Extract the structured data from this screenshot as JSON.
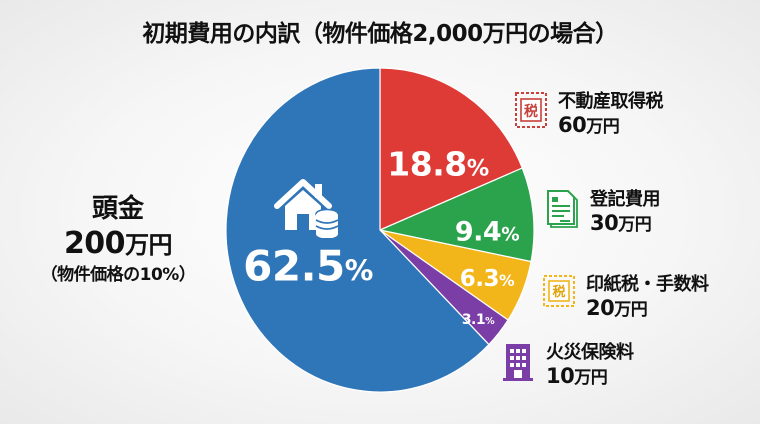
{
  "title": "初期費用の内訳（物件価格2,000万円の場合）",
  "colors": {
    "down_payment": "#2f76b8",
    "acquisition_tax": "#de3a36",
    "registration": "#2ba24c",
    "stamp_fees": "#f2b61b",
    "insurance": "#7b3ea6"
  },
  "slices": [
    {
      "key": "acquisition_tax",
      "pct_num": "18.8",
      "pct_sym": "%"
    },
    {
      "key": "registration",
      "pct_num": "9.4",
      "pct_sym": "%"
    },
    {
      "key": "stamp_fees",
      "pct_num": "6.3",
      "pct_sym": "%"
    },
    {
      "key": "insurance",
      "pct_num": "3.1",
      "pct_sym": "%"
    },
    {
      "key": "down_payment",
      "pct_num": "62.5",
      "pct_sym": "%"
    }
  ],
  "down_payment": {
    "name": "頭金",
    "amount_num": "200",
    "amount_unit": "万円",
    "note": "（物件価格の10%）",
    "icon": "house-coins-icon"
  },
  "legend": [
    {
      "name": "不動産取得税",
      "amount_num": "60",
      "amount_unit": "万円",
      "icon": "tax-stamp-icon",
      "icon_text": "税"
    },
    {
      "name": "登記費用",
      "amount_num": "30",
      "amount_unit": "万円",
      "icon": "document-icon"
    },
    {
      "name": "印紙税・手数料",
      "amount_num": "20",
      "amount_unit": "万円",
      "icon": "tax-stamp-icon",
      "icon_text": "税"
    },
    {
      "name": "火災保険料",
      "amount_num": "10",
      "amount_unit": "万円",
      "icon": "building-icon"
    }
  ],
  "chart_data": {
    "type": "pie",
    "title": "初期費用の内訳（物件価格2,000万円の場合）",
    "categories": [
      "頭金",
      "不動産取得税",
      "登記費用",
      "印紙税・手数料",
      "火災保険料"
    ],
    "values": [
      200,
      60,
      30,
      20,
      10
    ],
    "unit": "万円",
    "percentages": [
      62.5,
      18.8,
      9.4,
      6.3,
      3.1
    ],
    "colors": [
      "#2f76b8",
      "#de3a36",
      "#2ba24c",
      "#f2b61b",
      "#7b3ea6"
    ],
    "annotations": [
      "頭金: 物件価格の10%"
    ],
    "legend_position": "right (callouts)"
  }
}
